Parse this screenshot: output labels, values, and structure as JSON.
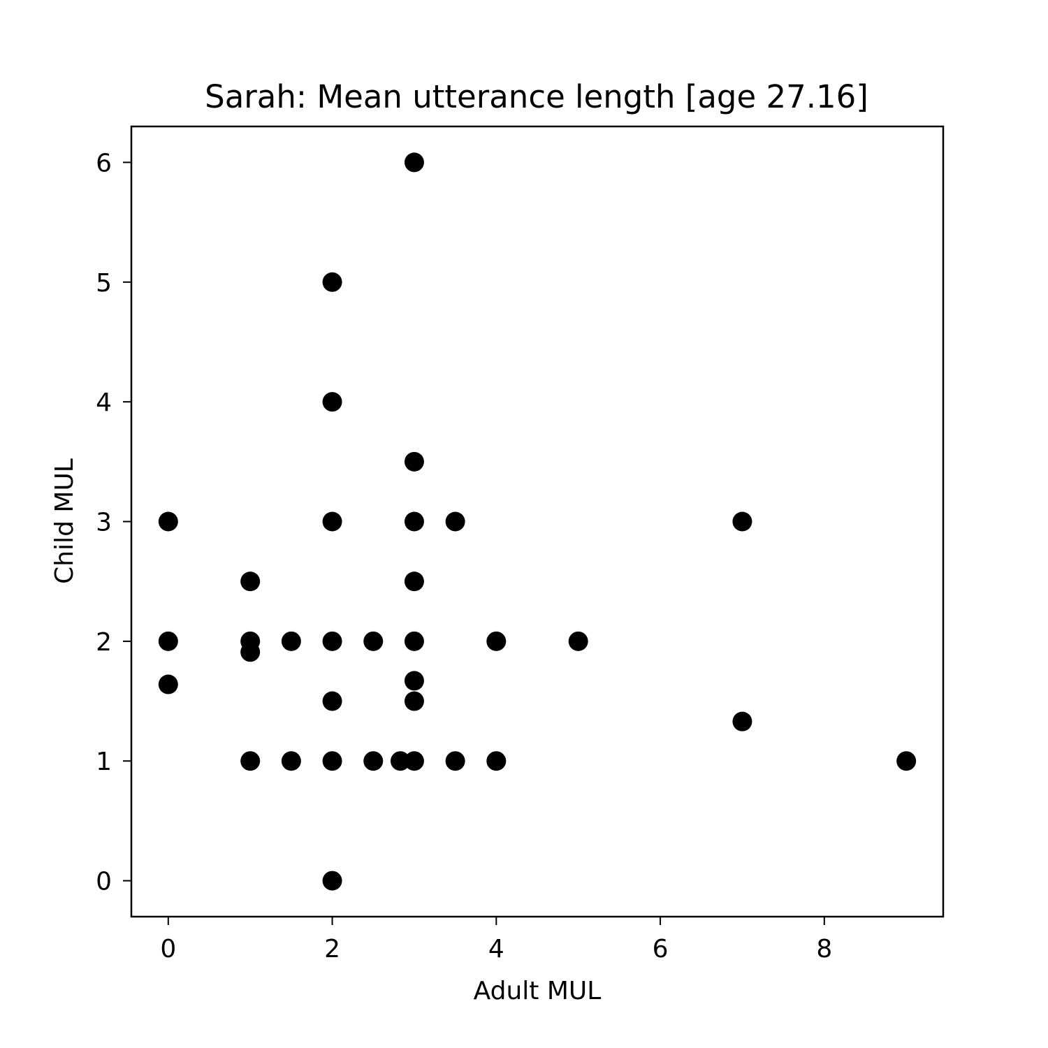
{
  "chart_data": {
    "type": "scatter",
    "title": "Sarah: Mean utterance length [age 27.16]",
    "xlabel": "Adult MUL",
    "ylabel": "Child MUL",
    "xlim": [
      -0.45,
      9.45
    ],
    "ylim": [
      -0.3,
      6.3
    ],
    "xticks": [
      0,
      2,
      4,
      6,
      8
    ],
    "yticks": [
      0,
      1,
      2,
      3,
      4,
      5,
      6
    ],
    "grid": false,
    "marker_color": "#000000",
    "points": [
      {
        "x": 0,
        "y": 3
      },
      {
        "x": 0,
        "y": 2
      },
      {
        "x": 0,
        "y": 1.64
      },
      {
        "x": 1,
        "y": 2.5
      },
      {
        "x": 1,
        "y": 2
      },
      {
        "x": 1,
        "y": 1.91
      },
      {
        "x": 1,
        "y": 1
      },
      {
        "x": 1.5,
        "y": 2
      },
      {
        "x": 1.5,
        "y": 1
      },
      {
        "x": 2,
        "y": 5
      },
      {
        "x": 2,
        "y": 4
      },
      {
        "x": 2,
        "y": 3
      },
      {
        "x": 2,
        "y": 2
      },
      {
        "x": 2,
        "y": 1.5
      },
      {
        "x": 2,
        "y": 1
      },
      {
        "x": 2,
        "y": 0
      },
      {
        "x": 2.5,
        "y": 2
      },
      {
        "x": 2.5,
        "y": 1
      },
      {
        "x": 2.83,
        "y": 1
      },
      {
        "x": 3,
        "y": 6
      },
      {
        "x": 3,
        "y": 3.5
      },
      {
        "x": 3,
        "y": 3
      },
      {
        "x": 3,
        "y": 2.5
      },
      {
        "x": 3,
        "y": 2
      },
      {
        "x": 3,
        "y": 1.67
      },
      {
        "x": 3,
        "y": 1.5
      },
      {
        "x": 3,
        "y": 1
      },
      {
        "x": 3.5,
        "y": 3
      },
      {
        "x": 3.5,
        "y": 1
      },
      {
        "x": 4,
        "y": 2
      },
      {
        "x": 4,
        "y": 1
      },
      {
        "x": 5,
        "y": 2
      },
      {
        "x": 7,
        "y": 3
      },
      {
        "x": 7,
        "y": 1.33
      },
      {
        "x": 9,
        "y": 1
      }
    ]
  }
}
